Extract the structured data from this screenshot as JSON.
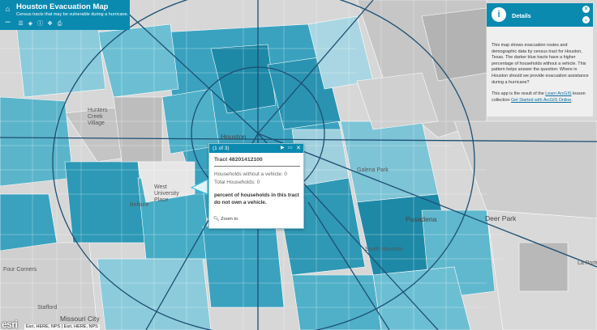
{
  "header": {
    "title": "Houston Evacuation Map",
    "subtitle": "Census tracts that may be vulnerable during a hurricane.",
    "home_icon": "home-icon",
    "zoom_out_symbol": "–",
    "tools": [
      "legend-icon",
      "layers-icon",
      "info-icon",
      "locate-icon",
      "print-icon"
    ]
  },
  "details": {
    "title": "Details",
    "icon": "info-icon",
    "paragraph1": "This map shows evacuation routes and demographic data by census tract for Houston, Texas. The darker blue tracts have a higher percentage of households without a vehicle. This pattern helps answer the question: Where in Houston should we provide evacuation assistance during a hurricane?",
    "paragraph2_prefix": "This app is the result of the ",
    "paragraph2_link1": "Learn ArcGIS",
    "paragraph2_middle": " lesson collection ",
    "paragraph2_link2": "Get Started with ArcGIS Online",
    "paragraph2_suffix": "."
  },
  "popup": {
    "counter": "(1 of 3)",
    "tract": "Tract 48201412100",
    "households_no_vehicle": "Households without a vehicle: 0",
    "total_households": "Total Households: 0",
    "percent_text": "percent of households in this tract do not own a vehicle.",
    "zoom_to": "Zoom to"
  },
  "places": {
    "houston": "Houston",
    "hunters_creek": "Hunters Creek Village",
    "bellaire": "Bellaire",
    "west_university": "West University Place",
    "galena_park": "Galena Park",
    "pasadena": "Pasadena",
    "south_houston": "South Houston",
    "deer_park": "Deer Park",
    "four_corners": "Four Corners",
    "stafford": "Stafford",
    "missouri_city": "Missouri City",
    "la_porte": "La Porte",
    "bellaire_area": "Bellaire"
  },
  "attribution": "Esri, HERE, NPS | Esri, HERE, NPS",
  "logo": "esri",
  "colors": {
    "accent": "#0b8ab0",
    "tract_dark": "#1e89a7",
    "tract_mid": "#4fb0c8",
    "tract_light": "#9fd0dd",
    "tract_pale": "#c9c9c9"
  }
}
